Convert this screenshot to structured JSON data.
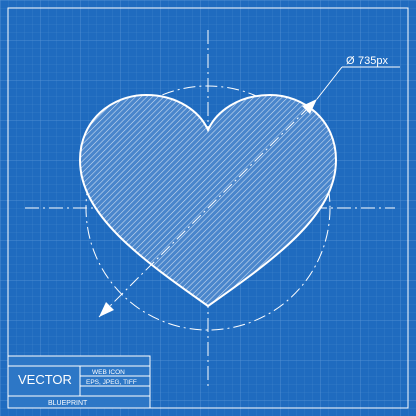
{
  "dimension": {
    "symbol": "Ø",
    "value": "735px"
  },
  "title_block": {
    "main": "VECTOR",
    "line1": "WEB  ICON",
    "line2": "EPS, JPEG, TIFF",
    "footer": "BLUEPRINT"
  },
  "colors": {
    "background": "#1f6bbf",
    "line": "#ffffff"
  },
  "icon": "heart-icon"
}
